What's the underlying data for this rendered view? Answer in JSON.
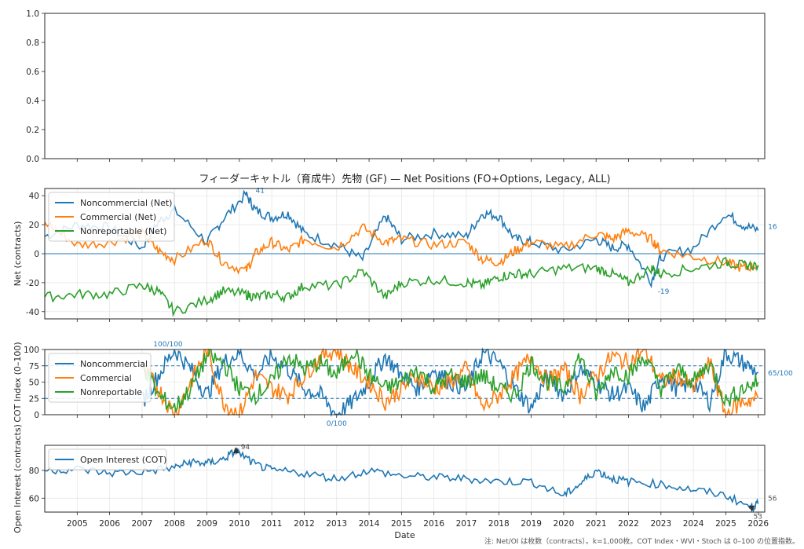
{
  "chart_data": [
    {
      "type": "line",
      "panel": "empty",
      "yticks": [
        "0.0",
        "0.2",
        "0.4",
        "0.6",
        "0.8",
        "1.0"
      ],
      "ylim": [
        0,
        1
      ]
    },
    {
      "type": "line",
      "panel": "net",
      "title": "フィーダーキャトル（育成牛）先物 (GF) — Net Positions (FO+Options, Legacy, ALL)",
      "ylabel": "Net (contracts)",
      "ylim": [
        -45,
        45
      ],
      "yticks": [
        -40,
        -20,
        0,
        20,
        40
      ],
      "x": [
        2004.0,
        2005.0,
        2006.0,
        2007.0,
        2007.5,
        2008.0,
        2009.0,
        2009.5,
        2010.2,
        2010.5,
        2011.0,
        2011.5,
        2012.0,
        2013.0,
        2013.8,
        2014.5,
        2015.0,
        2016.0,
        2017.0,
        2017.5,
        2018.0,
        2018.5,
        2019.0,
        2020.0,
        2021.0,
        2021.5,
        2022.0,
        2022.7,
        2023.0,
        2024.0,
        2025.0,
        2025.5,
        2026.0
      ],
      "series": [
        {
          "name": "Noncommercial (Net)",
          "color": "#1f77b4",
          "values": [
            12,
            20,
            18,
            4,
            22,
            30,
            8,
            24,
            41,
            30,
            25,
            28,
            14,
            6,
            -4,
            26,
            10,
            14,
            12,
            28,
            26,
            10,
            8,
            2,
            10,
            4,
            6,
            -19,
            -2,
            4,
            28,
            20,
            16
          ]
        },
        {
          "name": "Commercial (Net)",
          "color": "#ff7f0e",
          "values": [
            22,
            6,
            8,
            14,
            2,
            -4,
            10,
            -6,
            -12,
            0,
            8,
            2,
            10,
            4,
            18,
            8,
            10,
            6,
            8,
            -4,
            -6,
            2,
            8,
            4,
            14,
            10,
            16,
            10,
            2,
            -2,
            -6,
            -10,
            -8
          ]
        },
        {
          "name": "Nonreportable (Net)",
          "color": "#2ca02c",
          "values": [
            -30,
            -28,
            -28,
            -22,
            -26,
            -40,
            -32,
            -26,
            -28,
            -30,
            -28,
            -30,
            -22,
            -22,
            -12,
            -30,
            -20,
            -18,
            -20,
            -22,
            -16,
            -14,
            -14,
            -10,
            -10,
            -14,
            -20,
            -10,
            -14,
            -10,
            -6,
            -8,
            -8
          ]
        }
      ],
      "annotations": [
        {
          "label": "41",
          "x": 2010.5,
          "y": 41,
          "color": "#1f77b4"
        },
        {
          "label": "-19",
          "x": 2022.9,
          "y": -19,
          "color": "#1f77b4"
        },
        {
          "label": "16",
          "x": 2026.3,
          "y": 16,
          "color": "#1f77b4"
        }
      ],
      "legend": "upper left"
    },
    {
      "type": "line",
      "panel": "cot_index",
      "ylabel": "COT Index (0–100)",
      "ylim": [
        0,
        100
      ],
      "yticks": [
        0,
        25,
        50,
        75,
        100
      ],
      "reference_lines": [
        25,
        75
      ],
      "x": [
        2007.0,
        2007.5,
        2008.0,
        2008.5,
        2009.0,
        2009.5,
        2010.0,
        2010.5,
        2011.0,
        2011.5,
        2012.0,
        2012.5,
        2013.0,
        2013.5,
        2014.0,
        2014.5,
        2015.0,
        2015.5,
        2016.0,
        2016.5,
        2017.0,
        2017.5,
        2018.0,
        2018.5,
        2019.0,
        2019.5,
        2020.0,
        2020.5,
        2021.0,
        2021.5,
        2022.0,
        2022.5,
        2023.0,
        2023.5,
        2024.0,
        2024.5,
        2025.0,
        2025.5,
        2026.0
      ],
      "series": [
        {
          "name": "Noncommercial",
          "color": "#1f77b4",
          "values": [
            20,
            60,
            100,
            70,
            30,
            80,
            95,
            60,
            90,
            70,
            40,
            30,
            0,
            20,
            50,
            90,
            60,
            40,
            70,
            50,
            40,
            95,
            80,
            40,
            10,
            60,
            30,
            70,
            50,
            30,
            40,
            10,
            60,
            40,
            50,
            20,
            95,
            80,
            65
          ]
        },
        {
          "name": "Commercial",
          "color": "#ff7f0e",
          "values": [
            70,
            40,
            0,
            50,
            100,
            20,
            0,
            60,
            40,
            30,
            60,
            90,
            100,
            70,
            50,
            20,
            40,
            60,
            40,
            50,
            70,
            10,
            30,
            60,
            90,
            50,
            70,
            30,
            60,
            90,
            80,
            100,
            50,
            60,
            40,
            80,
            0,
            20,
            25
          ]
        },
        {
          "name": "Nonreportable",
          "color": "#2ca02c",
          "values": [
            80,
            30,
            10,
            40,
            90,
            80,
            40,
            30,
            50,
            90,
            70,
            80,
            60,
            100,
            60,
            40,
            50,
            70,
            40,
            60,
            50,
            60,
            40,
            30,
            80,
            50,
            40,
            90,
            30,
            70,
            60,
            90,
            40,
            70,
            50,
            80,
            20,
            40,
            50
          ]
        }
      ],
      "annotations": [
        {
          "label": "100/100",
          "x": 2007.8,
          "y": 100,
          "color": "#1f77b4"
        },
        {
          "label": "0/100",
          "x": 2013.0,
          "y": 0,
          "color": "#1f77b4"
        },
        {
          "label": "65/100",
          "x": 2026.3,
          "y": 65,
          "color": "#1f77b4"
        }
      ],
      "legend": "upper left"
    },
    {
      "type": "line",
      "panel": "open_interest",
      "ylabel": "Open Interest (contracts)",
      "xlabel": "Date",
      "ylim": [
        50,
        98
      ],
      "yticks": [
        60,
        80
      ],
      "x": [
        2004.0,
        2005.0,
        2006.0,
        2007.0,
        2008.0,
        2008.5,
        2009.0,
        2009.5,
        2009.9,
        2010.5,
        2011.0,
        2012.0,
        2013.0,
        2014.0,
        2015.0,
        2016.0,
        2017.0,
        2018.0,
        2019.0,
        2020.0,
        2020.5,
        2021.0,
        2021.5,
        2022.0,
        2023.0,
        2024.0,
        2025.0,
        2025.8,
        2026.0
      ],
      "series": [
        {
          "name": "Open Interest (COT)",
          "color": "#1f77b4",
          "values": [
            80,
            81,
            78,
            79,
            82,
            86,
            85,
            88,
            94,
            84,
            80,
            78,
            74,
            80,
            76,
            75,
            74,
            72,
            72,
            62,
            70,
            80,
            74,
            72,
            70,
            66,
            62,
            53,
            56
          ]
        }
      ],
      "annotations": [
        {
          "label": "94",
          "x": 2009.9,
          "y": 94,
          "color": "#555555"
        },
        {
          "label": "56",
          "x": 2026.3,
          "y": 56,
          "color": "#555555"
        },
        {
          "label": "53",
          "x": 2026.2,
          "y": 53,
          "color": "#555555"
        }
      ],
      "legend": "upper left"
    }
  ],
  "x_axis": {
    "xlim": [
      2004.0,
      2026.2
    ],
    "tick_labels": [
      "2005",
      "2006",
      "2007",
      "2008",
      "2009",
      "2010",
      "2011",
      "2012",
      "2013",
      "2014",
      "2015",
      "2016",
      "2017",
      "2018",
      "2019",
      "2020",
      "2021",
      "2022",
      "2023",
      "2024",
      "2025",
      "2026"
    ],
    "label": "Date"
  },
  "footnote": "注: Net/OI は枚数（contracts）。k=1,000枚。COT Index・WVI・Stoch は 0–100 の位置指数。",
  "colors": {
    "blue": "#1f77b4",
    "orange": "#ff7f0e",
    "green": "#2ca02c",
    "grid": "#e6e6e6"
  }
}
